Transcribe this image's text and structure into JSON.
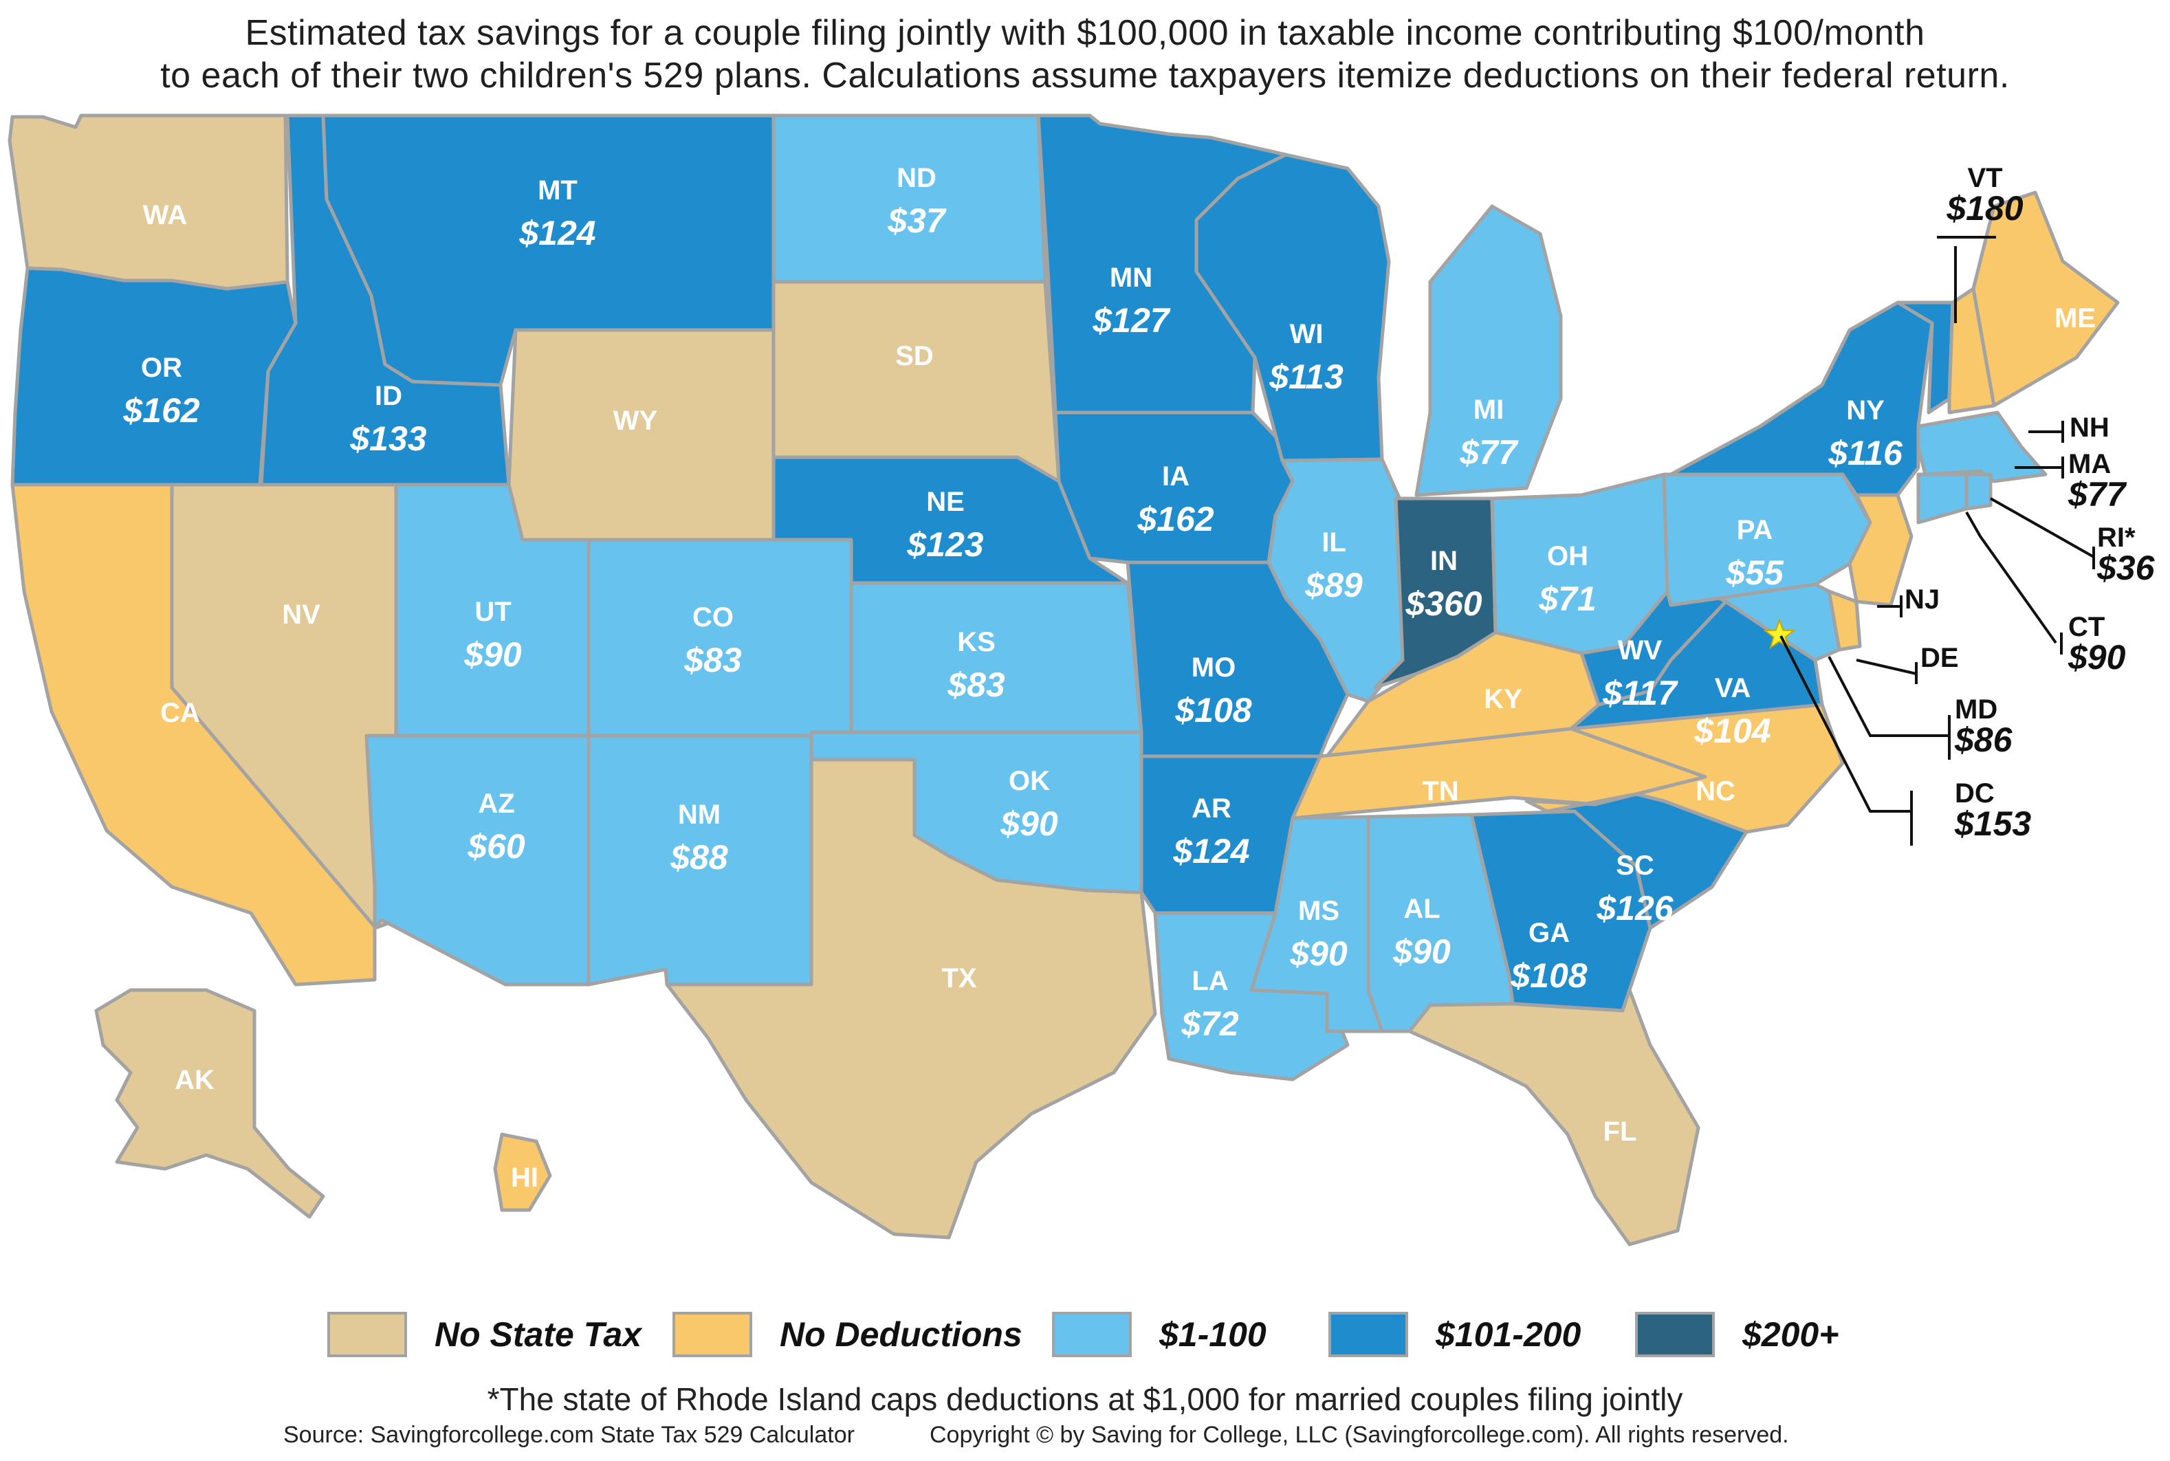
{
  "title": {
    "line1": "Estimated tax savings for a couple filing jointly with $100,000 in taxable income contributing $100/month",
    "line2": "to each of their two children's 529 plans. Calculations assume taxpayers itemize deductions on their federal return."
  },
  "colors": {
    "no_state_tax": "#e2ca98",
    "no_deductions": "#f9c86b",
    "tier_1_100": "#67c2ee",
    "tier_101_200": "#1f8ccd",
    "tier_200_plus": "#2b6380",
    "border": "#a3a3a3",
    "star": "#f6f22b"
  },
  "legend": [
    {
      "key": "no_state_tax",
      "label": "No State Tax"
    },
    {
      "key": "no_deductions",
      "label": "No Deductions"
    },
    {
      "key": "tier_1_100",
      "label": "$1-100"
    },
    {
      "key": "tier_101_200",
      "label": "$101-200"
    },
    {
      "key": "tier_200_plus",
      "label": "$200+"
    }
  ],
  "states": [
    {
      "abbr": "WA",
      "savings": "",
      "category": "no_state_tax"
    },
    {
      "abbr": "OR",
      "savings": "$162",
      "category": "tier_101_200"
    },
    {
      "abbr": "CA",
      "savings": "",
      "category": "no_deductions"
    },
    {
      "abbr": "NV",
      "savings": "",
      "category": "no_state_tax"
    },
    {
      "abbr": "ID",
      "savings": "$133",
      "category": "tier_101_200"
    },
    {
      "abbr": "MT",
      "savings": "$124",
      "category": "tier_101_200"
    },
    {
      "abbr": "WY",
      "savings": "",
      "category": "no_state_tax"
    },
    {
      "abbr": "UT",
      "savings": "$90",
      "category": "tier_1_100"
    },
    {
      "abbr": "AZ",
      "savings": "$60",
      "category": "tier_1_100"
    },
    {
      "abbr": "CO",
      "savings": "$83",
      "category": "tier_1_100"
    },
    {
      "abbr": "NM",
      "savings": "$88",
      "category": "tier_1_100"
    },
    {
      "abbr": "ND",
      "savings": "$37",
      "category": "tier_1_100"
    },
    {
      "abbr": "SD",
      "savings": "",
      "category": "no_state_tax"
    },
    {
      "abbr": "NE",
      "savings": "$123",
      "category": "tier_101_200"
    },
    {
      "abbr": "KS",
      "savings": "$83",
      "category": "tier_1_100"
    },
    {
      "abbr": "OK",
      "savings": "$90",
      "category": "tier_1_100"
    },
    {
      "abbr": "TX",
      "savings": "",
      "category": "no_state_tax"
    },
    {
      "abbr": "MN",
      "savings": "$127",
      "category": "tier_101_200"
    },
    {
      "abbr": "IA",
      "savings": "$162",
      "category": "tier_101_200"
    },
    {
      "abbr": "MO",
      "savings": "$108",
      "category": "tier_101_200"
    },
    {
      "abbr": "AR",
      "savings": "$124",
      "category": "tier_101_200"
    },
    {
      "abbr": "LA",
      "savings": "$72",
      "category": "tier_1_100"
    },
    {
      "abbr": "WI",
      "savings": "$113",
      "category": "tier_101_200"
    },
    {
      "abbr": "IL",
      "savings": "$89",
      "category": "tier_1_100"
    },
    {
      "abbr": "MI",
      "savings": "$77",
      "category": "tier_1_100"
    },
    {
      "abbr": "IN",
      "savings": "$360",
      "category": "tier_200_plus"
    },
    {
      "abbr": "OH",
      "savings": "$71",
      "category": "tier_1_100"
    },
    {
      "abbr": "KY",
      "savings": "",
      "category": "no_deductions"
    },
    {
      "abbr": "TN",
      "savings": "",
      "category": "no_deductions"
    },
    {
      "abbr": "MS",
      "savings": "$90",
      "category": "tier_1_100"
    },
    {
      "abbr": "AL",
      "savings": "$90",
      "category": "tier_1_100"
    },
    {
      "abbr": "GA",
      "savings": "$108",
      "category": "tier_101_200"
    },
    {
      "abbr": "FL",
      "savings": "",
      "category": "no_state_tax"
    },
    {
      "abbr": "SC",
      "savings": "$126",
      "category": "tier_101_200"
    },
    {
      "abbr": "NC",
      "savings": "",
      "category": "no_deductions"
    },
    {
      "abbr": "VA",
      "savings": "$104",
      "category": "tier_101_200"
    },
    {
      "abbr": "WV",
      "savings": "$117",
      "category": "tier_101_200"
    },
    {
      "abbr": "PA",
      "savings": "$55",
      "category": "tier_1_100"
    },
    {
      "abbr": "NY",
      "savings": "$116",
      "category": "tier_101_200"
    },
    {
      "abbr": "ME",
      "savings": "",
      "category": "no_deductions"
    },
    {
      "abbr": "VT",
      "savings": "$180",
      "category": "tier_101_200"
    },
    {
      "abbr": "NH",
      "savings": "",
      "category": "no_deductions"
    },
    {
      "abbr": "MA",
      "savings": "$77",
      "category": "tier_1_100"
    },
    {
      "abbr": "RI*",
      "savings": "$36",
      "category": "tier_1_100"
    },
    {
      "abbr": "CT",
      "savings": "$90",
      "category": "tier_1_100"
    },
    {
      "abbr": "NJ",
      "savings": "",
      "category": "no_deductions"
    },
    {
      "abbr": "DE",
      "savings": "",
      "category": "no_deductions"
    },
    {
      "abbr": "MD",
      "savings": "$86",
      "category": "tier_1_100"
    },
    {
      "abbr": "DC",
      "savings": "$153",
      "category": "tier_101_200"
    },
    {
      "abbr": "AK",
      "savings": "",
      "category": "no_state_tax"
    },
    {
      "abbr": "HI",
      "savings": "",
      "category": "no_deductions"
    }
  ],
  "footnote": "*The state of Rhode Island caps deductions at $1,000 for married couples filing jointly",
  "source": "Source: Savingforcollege.com State Tax 529 Calculator",
  "copyright": "Copyright ©  by Saving for College, LLC (Savingforcollege.com). All rights reserved."
}
